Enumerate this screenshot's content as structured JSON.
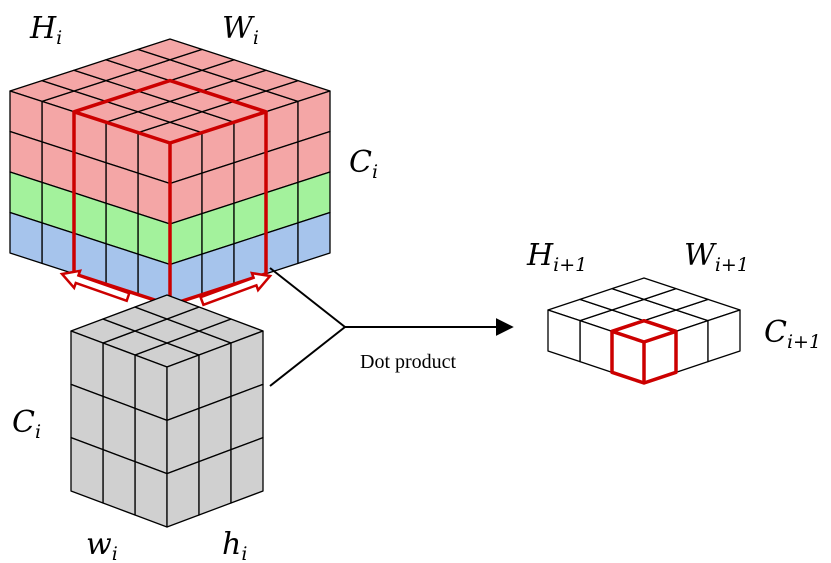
{
  "input_tensor": {
    "height_label": {
      "base": "H",
      "sub": "i"
    },
    "width_label": {
      "base": "W",
      "sub": "i"
    },
    "channel_label": {
      "base": "C",
      "sub": "i"
    },
    "grid": {
      "rows": 5,
      "cols": 5,
      "channel_layers": 3
    },
    "colors": {
      "layer_1": "#f4a6a6",
      "layer_2": "#a3f29c",
      "layer_3": "#a6c4ec"
    }
  },
  "kernel": {
    "width_label": {
      "base": "w",
      "sub": "i"
    },
    "height_label": {
      "base": "h",
      "sub": "i"
    },
    "channel_label": {
      "base": "C",
      "sub": "i"
    },
    "grid": {
      "rows": 3,
      "cols": 3,
      "depth": 3
    },
    "color": "#d0d0d0"
  },
  "operation": {
    "label": "Dot product"
  },
  "output_tensor": {
    "height_label": {
      "base": "H",
      "sub": "i+1"
    },
    "width_label": {
      "base": "W",
      "sub": "i+1"
    },
    "channel_label": {
      "base": "C",
      "sub": "i+1"
    },
    "grid": {
      "rows": 3,
      "cols": 3,
      "depth": 1
    },
    "color": "#ffffff"
  },
  "highlight_color": "#cc0000"
}
